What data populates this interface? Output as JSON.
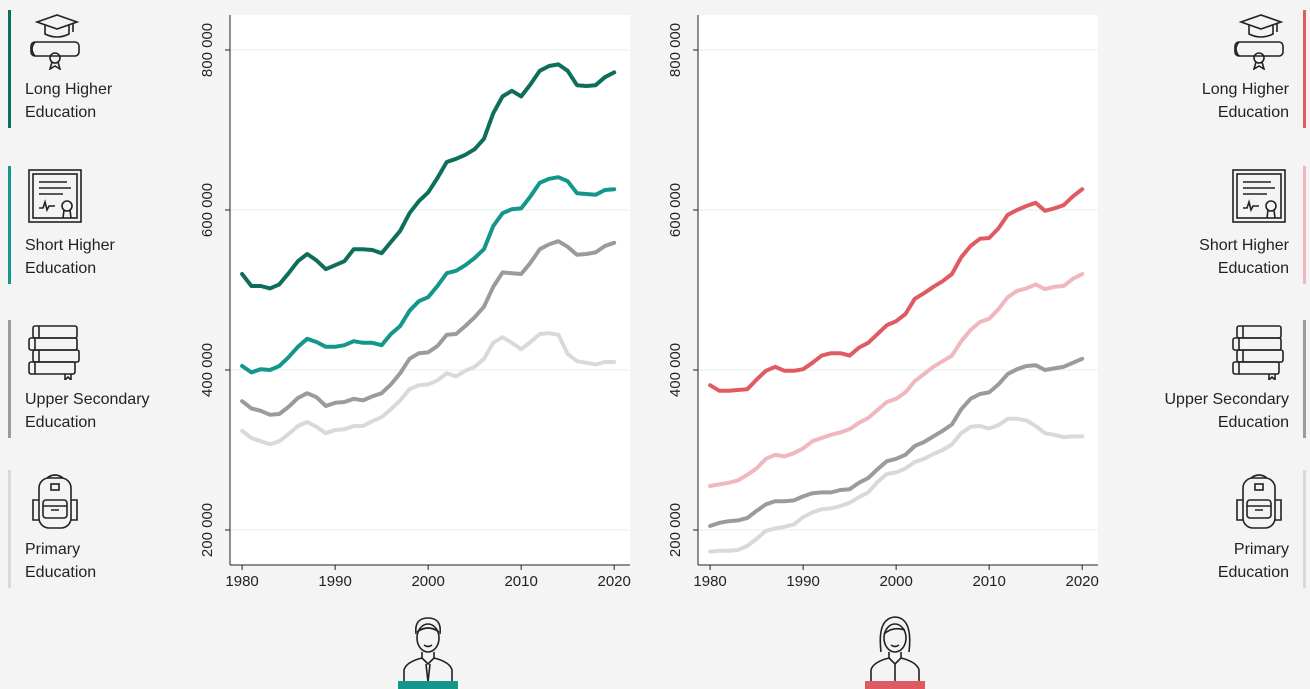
{
  "chart_data": [
    {
      "type": "line",
      "x": [
        1980,
        1981,
        1982,
        1983,
        1984,
        1985,
        1986,
        1987,
        1988,
        1989,
        1990,
        1991,
        1992,
        1993,
        1994,
        1995,
        1996,
        1997,
        1998,
        1999,
        2000,
        2001,
        2002,
        2003,
        2004,
        2005,
        2006,
        2007,
        2008,
        2009,
        2010,
        2011,
        2012,
        2013,
        2014,
        2015,
        2016,
        2017,
        2018,
        2019,
        2020
      ],
      "xlim": [
        1978.7,
        2021.7
      ],
      "xticks": [
        1980,
        1990,
        2000,
        2010,
        2020
      ],
      "ylim": [
        156250,
        843750
      ],
      "yticks": [
        {
          "value": 200000,
          "label": "200 000"
        },
        {
          "value": 400000,
          "label": "400 000"
        },
        {
          "value": 600000,
          "label": "600 000"
        },
        {
          "value": 800000,
          "label": "800 000"
        }
      ],
      "grid": true,
      "series": [
        {
          "name": "Long Higher Education",
          "color": "#0e6e5c",
          "values": [
            520000,
            505000,
            505000,
            502000,
            507000,
            521000,
            536000,
            545000,
            537000,
            526000,
            531000,
            536000,
            551000,
            551000,
            550000,
            546000,
            560000,
            574000,
            596000,
            611000,
            622000,
            640000,
            660000,
            664000,
            669000,
            676000,
            689000,
            721000,
            742000,
            749000,
            742000,
            757000,
            774000,
            780000,
            782000,
            774000,
            756000,
            755000,
            756000,
            766000,
            772000
          ]
        },
        {
          "name": "Short Higher Education",
          "color": "#12978a",
          "values": [
            405000,
            397000,
            401000,
            400000,
            405000,
            416000,
            429000,
            439000,
            435000,
            429000,
            429000,
            431000,
            436000,
            434000,
            434000,
            431000,
            445000,
            455000,
            474000,
            486000,
            491000,
            505000,
            521000,
            524000,
            531000,
            540000,
            551000,
            580000,
            596000,
            601000,
            602000,
            617000,
            634000,
            639000,
            641000,
            636000,
            621000,
            620000,
            619000,
            625000,
            626000
          ]
        },
        {
          "name": "Upper Secondary Education",
          "color": "#9b9b9b",
          "values": [
            361000,
            352000,
            349000,
            344000,
            345000,
            354000,
            365000,
            371000,
            366000,
            355000,
            359000,
            360000,
            364000,
            362000,
            367000,
            371000,
            382000,
            396000,
            414000,
            421000,
            422000,
            430000,
            444000,
            445000,
            455000,
            466000,
            479000,
            504000,
            522000,
            521000,
            520000,
            534000,
            551000,
            557000,
            561000,
            554000,
            544000,
            545000,
            547000,
            555000,
            559000
          ]
        },
        {
          "name": "Primary Education",
          "color": "#d9d9d9",
          "values": [
            324000,
            315000,
            311000,
            307000,
            311000,
            320000,
            330000,
            335000,
            329000,
            321000,
            325000,
            326000,
            330000,
            330000,
            336000,
            341000,
            351000,
            362000,
            376000,
            381000,
            382000,
            387000,
            396000,
            392000,
            399000,
            404000,
            414000,
            434000,
            441000,
            434000,
            426000,
            435000,
            445000,
            446000,
            444000,
            420000,
            411000,
            409000,
            407000,
            410000,
            410000
          ]
        }
      ]
    },
    {
      "type": "line",
      "x": [
        1980,
        1981,
        1982,
        1983,
        1984,
        1985,
        1986,
        1987,
        1988,
        1989,
        1990,
        1991,
        1992,
        1993,
        1994,
        1995,
        1996,
        1997,
        1998,
        1999,
        2000,
        2001,
        2002,
        2003,
        2004,
        2005,
        2006,
        2007,
        2008,
        2009,
        2010,
        2011,
        2012,
        2013,
        2014,
        2015,
        2016,
        2017,
        2018,
        2019,
        2020
      ],
      "xlim": [
        1978.7,
        2021.7
      ],
      "xticks": [
        1980,
        1990,
        2000,
        2010,
        2020
      ],
      "ylim": [
        156250,
        843750
      ],
      "yticks": [
        {
          "value": 200000,
          "label": "200 000"
        },
        {
          "value": 400000,
          "label": "400 000"
        },
        {
          "value": 600000,
          "label": "600 000"
        },
        {
          "value": 800000,
          "label": "800 000"
        }
      ],
      "grid": true,
      "series": [
        {
          "name": "Long Higher Education",
          "color": "#e05a62",
          "values": [
            381000,
            374000,
            374000,
            375000,
            376000,
            388000,
            399000,
            404000,
            399000,
            399000,
            401000,
            409000,
            418000,
            421000,
            421000,
            418000,
            428000,
            434000,
            445000,
            456000,
            461000,
            470000,
            489000,
            496000,
            504000,
            511000,
            520000,
            541000,
            555000,
            564000,
            565000,
            577000,
            594000,
            600000,
            605000,
            609000,
            599000,
            602000,
            606000,
            617000,
            626000
          ]
        },
        {
          "name": "Short Higher Education",
          "color": "#f0b7be",
          "values": [
            255000,
            257000,
            259000,
            262000,
            269000,
            277000,
            289000,
            294000,
            292000,
            296000,
            302000,
            311000,
            315000,
            319000,
            322000,
            326000,
            334000,
            340000,
            350000,
            360000,
            364000,
            372000,
            386000,
            395000,
            404000,
            411000,
            418000,
            436000,
            450000,
            460000,
            464000,
            476000,
            491000,
            499000,
            502000,
            507000,
            501000,
            504000,
            505000,
            514000,
            520000
          ]
        },
        {
          "name": "Upper Secondary Education",
          "color": "#9b9b9b",
          "values": [
            205000,
            209000,
            211000,
            212000,
            215000,
            224000,
            232000,
            236000,
            236000,
            237000,
            242000,
            246000,
            247000,
            247000,
            250000,
            251000,
            259000,
            265000,
            276000,
            286000,
            289000,
            294000,
            305000,
            310000,
            317000,
            324000,
            332000,
            351000,
            364000,
            370000,
            372000,
            382000,
            395000,
            401000,
            405000,
            406000,
            400000,
            402000,
            404000,
            409000,
            414000
          ]
        },
        {
          "name": "Primary Education",
          "color": "#d9d9d9",
          "values": [
            173000,
            174000,
            174000,
            175000,
            180000,
            189000,
            199000,
            202000,
            204000,
            207000,
            216000,
            222000,
            226000,
            227000,
            230000,
            234000,
            241000,
            247000,
            260000,
            270000,
            272000,
            277000,
            285000,
            289000,
            295000,
            300000,
            307000,
            321000,
            329000,
            330000,
            327000,
            331000,
            339000,
            339000,
            337000,
            330000,
            321000,
            319000,
            316000,
            317000,
            317000
          ]
        }
      ]
    }
  ]
}
